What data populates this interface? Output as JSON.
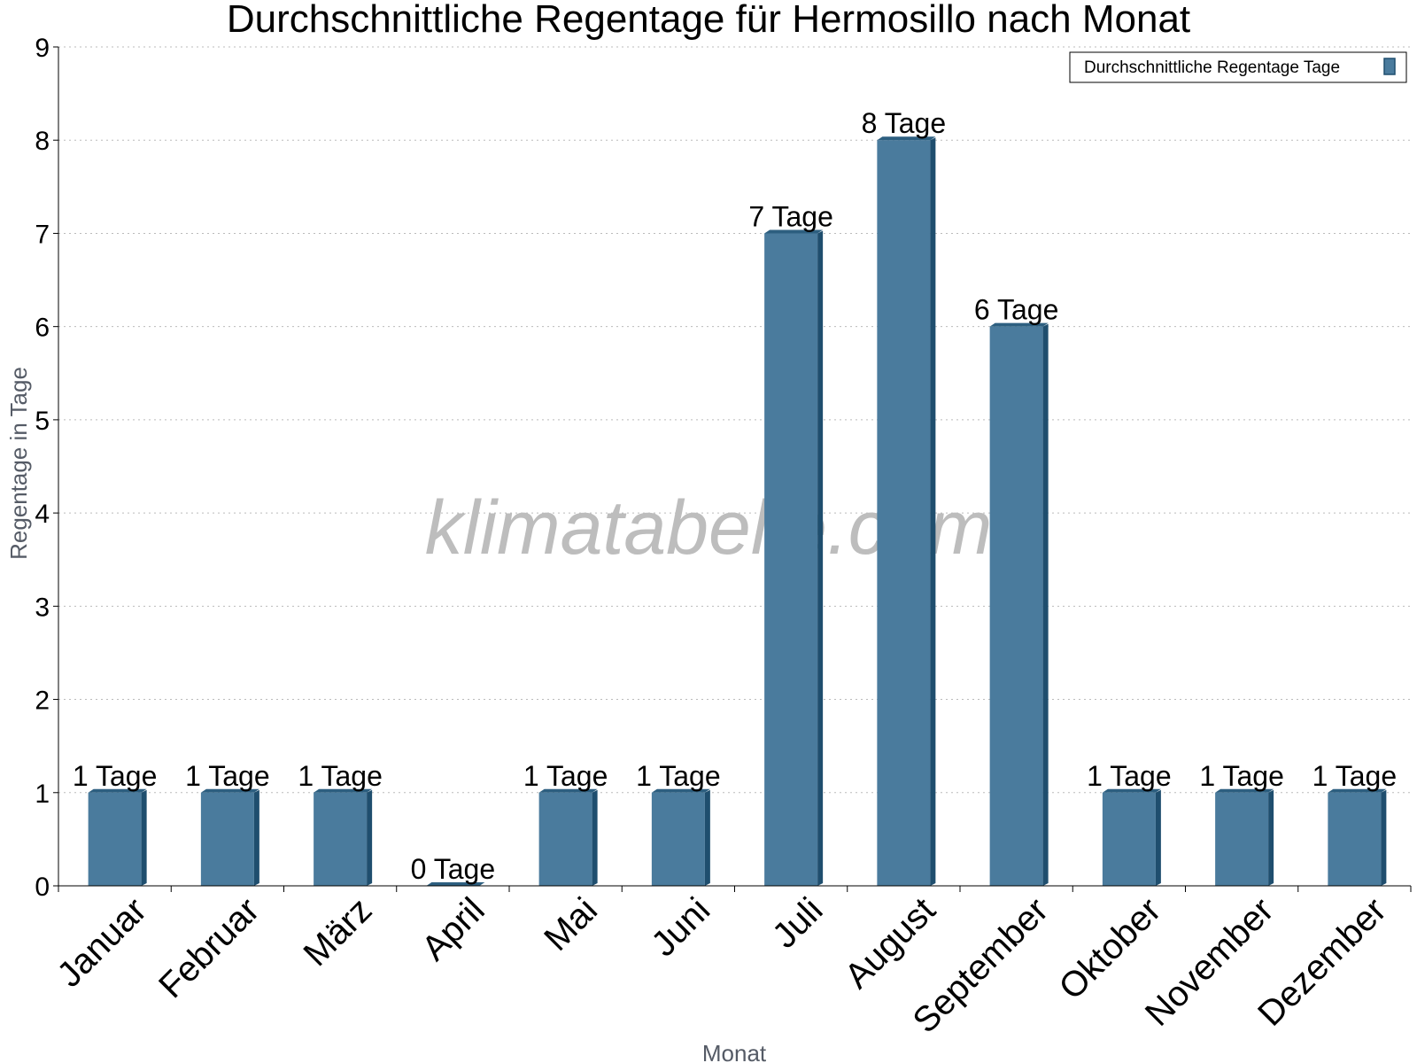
{
  "chart_data": {
    "type": "bar",
    "title": "Durchschnittliche Regentage für Hermosillo nach Monat",
    "xlabel": "Monat",
    "ylabel": "Regentage in Tage",
    "categories": [
      "Januar",
      "Februar",
      "März",
      "April",
      "Mai",
      "Juni",
      "Juli",
      "August",
      "September",
      "Oktober",
      "November",
      "Dezember"
    ],
    "series": [
      {
        "name": "Durchschnittliche Regentage Tage",
        "values": [
          1,
          1,
          1,
          0,
          1,
          1,
          7,
          8,
          6,
          1,
          1,
          1
        ],
        "data_labels": [
          "1 Tage",
          "1 Tage",
          "1 Tage",
          "0 Tage",
          "1 Tage",
          "1 Tage",
          "7 Tage",
          "8 Tage",
          "6 Tage",
          "1 Tage",
          "1 Tage",
          "1 Tage"
        ]
      }
    ],
    "ylim": [
      0,
      9
    ],
    "yticks": [
      0,
      1,
      2,
      3,
      4,
      5,
      6,
      7,
      8,
      9
    ],
    "grid": true,
    "legend_position": "top-right",
    "colors": {
      "bar": "#4a7b9d",
      "bar_side": "#1f4e6e",
      "bar_top": "#2d5f80",
      "grid": "#bbbbbb",
      "axis": "#000000"
    }
  },
  "watermark": "klimatabelle.com"
}
